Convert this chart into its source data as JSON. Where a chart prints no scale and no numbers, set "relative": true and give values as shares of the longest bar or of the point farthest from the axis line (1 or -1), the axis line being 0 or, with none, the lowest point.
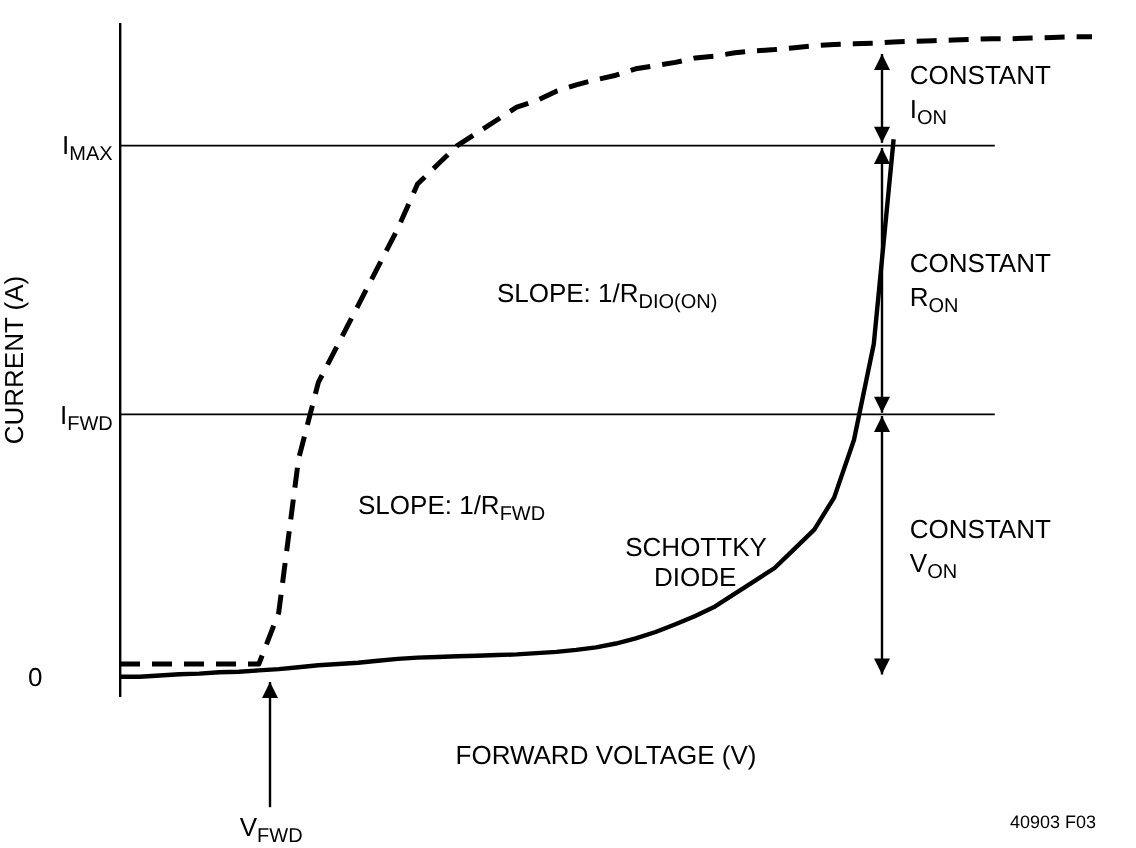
{
  "chart_data": {
    "type": "line",
    "xlabel": "FORWARD VOLTAGE (V)",
    "ylabel": "CURRENT (A)",
    "relative": true,
    "legend": false,
    "grid": false,
    "marker": "none",
    "categories": [
      null,
      null,
      null,
      null,
      null,
      null,
      null,
      null,
      null,
      null,
      null,
      null,
      null,
      null,
      null,
      null,
      null,
      null,
      null,
      null,
      null,
      null,
      null,
      null,
      null,
      null,
      null,
      null,
      null,
      null,
      null,
      null,
      null,
      null,
      null,
      null,
      null,
      null,
      null,
      null,
      null,
      null,
      null,
      null,
      null,
      null,
      null,
      null,
      null,
      null
    ],
    "series": [
      {
        "color": "#000000",
        "line_style": "dashed",
        "values": [
          0.02,
          0.02,
          0.02,
          0.02,
          0.02,
          0.02,
          0.02,
          0.02,
          0.1,
          0.34,
          0.46,
          0.52,
          0.58,
          0.64,
          0.7,
          0.77,
          0.8,
          0.83,
          0.85,
          0.87,
          0.89,
          0.9,
          0.915,
          0.925,
          0.933,
          0.94,
          0.95,
          0.955,
          0.96,
          0.967,
          0.97,
          0.975,
          0.978,
          0.98,
          0.983,
          0.986,
          0.988,
          0.989,
          0.99,
          0.992,
          0.993,
          0.994,
          0.995,
          0.996,
          0.997,
          0.997,
          0.998,
          0.999,
          1,
          1
        ]
      },
      {
        "name": "SCHOTTKY DIODE",
        "color": "#000000",
        "line_style": "solid",
        "values": [
          0,
          0,
          0.002,
          0.004,
          0.005,
          0.007,
          0.008,
          0.01,
          0.012,
          0.015,
          0.018,
          0.02,
          0.022,
          0.025,
          0.028,
          0.03,
          0.031,
          0.032,
          0.033,
          0.034,
          0.035,
          0.037,
          0.039,
          0.042,
          0.046,
          0.052,
          0.06,
          0.07,
          0.082,
          0.095,
          0.11,
          0.13,
          0.15,
          0.17,
          0.2,
          0.23,
          0.28,
          0.37,
          0.52,
          0.84,
          null,
          null,
          null,
          null,
          null,
          null,
          null,
          null,
          null,
          null
        ]
      }
    ],
    "ref_lines": [
      {
        "axis": "y",
        "value": 0.83,
        "label": "I$_{MAX}$",
        "color": "#000000"
      },
      {
        "axis": "y",
        "value": 0.41,
        "label": "I$_{FWD}$",
        "color": "#000000"
      }
    ],
    "annotations": [
      "SLOPE: 1/R$_{DIO(ON)}$",
      "SLOPE: 1/R$_{FWD}$",
      "CONSTANT I$_{ON}$",
      "CONSTANT R$_{ON}$",
      "CONSTANT V$_{ON}$",
      "0",
      "V$_{FWD}$",
      "40903 F03"
    ]
  }
}
